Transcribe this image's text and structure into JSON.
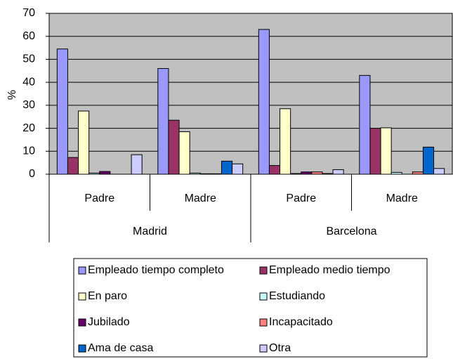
{
  "chart_data": {
    "type": "bar",
    "y_label": "%",
    "categories": [
      "Padre",
      "Madre",
      "Padre",
      "Madre"
    ],
    "groups": [
      "Madrid",
      "Barcelona"
    ],
    "ylim": [
      0,
      70
    ],
    "yticks": [
      0,
      10,
      20,
      30,
      40,
      50,
      60,
      70
    ],
    "grid": true,
    "series": [
      {
        "name": "Empleado tiempo completo",
        "color": "#9999ff",
        "values": [
          54.5,
          46,
          63,
          43
        ]
      },
      {
        "name": "Empleado medio tiempo",
        "color": "#993366",
        "values": [
          7.3,
          23.5,
          3.8,
          20
        ]
      },
      {
        "name": "En paro",
        "color": "#ffffcc",
        "values": [
          27.5,
          18.5,
          28.5,
          20.2
        ]
      },
      {
        "name": "Estudiando",
        "color": "#ccffff",
        "values": [
          0.5,
          0.5,
          0.3,
          0.8
        ]
      },
      {
        "name": "Jubilado",
        "color": "#660066",
        "values": [
          1.2,
          0.2,
          1,
          0
        ]
      },
      {
        "name": "Incapacitado",
        "color": "#ff8080",
        "values": [
          0,
          0.2,
          1,
          1
        ]
      },
      {
        "name": "Ama de casa",
        "color": "#0066cc",
        "values": [
          0,
          5.7,
          0.3,
          11.8
        ]
      },
      {
        "name": "Otra",
        "color": "#ccccff",
        "values": [
          8.5,
          4.5,
          2,
          2.5
        ]
      }
    ]
  }
}
